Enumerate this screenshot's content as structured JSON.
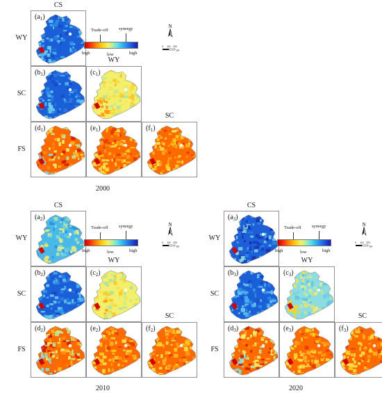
{
  "cols": [
    "CS",
    "WY",
    "SC"
  ],
  "rows": [
    "WY",
    "SC",
    "FS"
  ],
  "legend": {
    "tradeoff": "Trade-off",
    "synergy": "synergy",
    "high_left": "high",
    "low": "low",
    "high_right": "high"
  },
  "north_label": "N",
  "scalebar": {
    "ticks": [
      "0",
      "110",
      "220"
    ],
    "unit": "km"
  },
  "blocks": [
    {
      "year": "2000",
      "panels": [
        {
          "letter": "a",
          "index": "1",
          "pattern": "blue"
        },
        {
          "letter": "b",
          "index": "1",
          "pattern": "blue"
        },
        {
          "letter": "c",
          "index": "1",
          "pattern": "yellow"
        },
        {
          "letter": "d",
          "index": "1",
          "pattern": "fs"
        },
        {
          "letter": "e",
          "index": "1",
          "pattern": "orange"
        },
        {
          "letter": "f",
          "index": "1",
          "pattern": "orange"
        }
      ]
    },
    {
      "year": "2010",
      "panels": [
        {
          "letter": "a",
          "index": "2",
          "pattern": "bluegreen"
        },
        {
          "letter": "b",
          "index": "2",
          "pattern": "blue"
        },
        {
          "letter": "c",
          "index": "2",
          "pattern": "yellow"
        },
        {
          "letter": "d",
          "index": "2",
          "pattern": "fs"
        },
        {
          "letter": "e",
          "index": "2",
          "pattern": "orange"
        },
        {
          "letter": "f",
          "index": "2",
          "pattern": "orange"
        }
      ]
    },
    {
      "year": "2020",
      "panels": [
        {
          "letter": "a",
          "index": "3",
          "pattern": "deepblue"
        },
        {
          "letter": "b",
          "index": "3",
          "pattern": "blue"
        },
        {
          "letter": "c",
          "index": "3",
          "pattern": "cyan"
        },
        {
          "letter": "d",
          "index": "3",
          "pattern": "fs"
        },
        {
          "letter": "e",
          "index": "3",
          "pattern": "orange"
        },
        {
          "letter": "f",
          "index": "3",
          "pattern": "orange"
        }
      ]
    }
  ]
}
